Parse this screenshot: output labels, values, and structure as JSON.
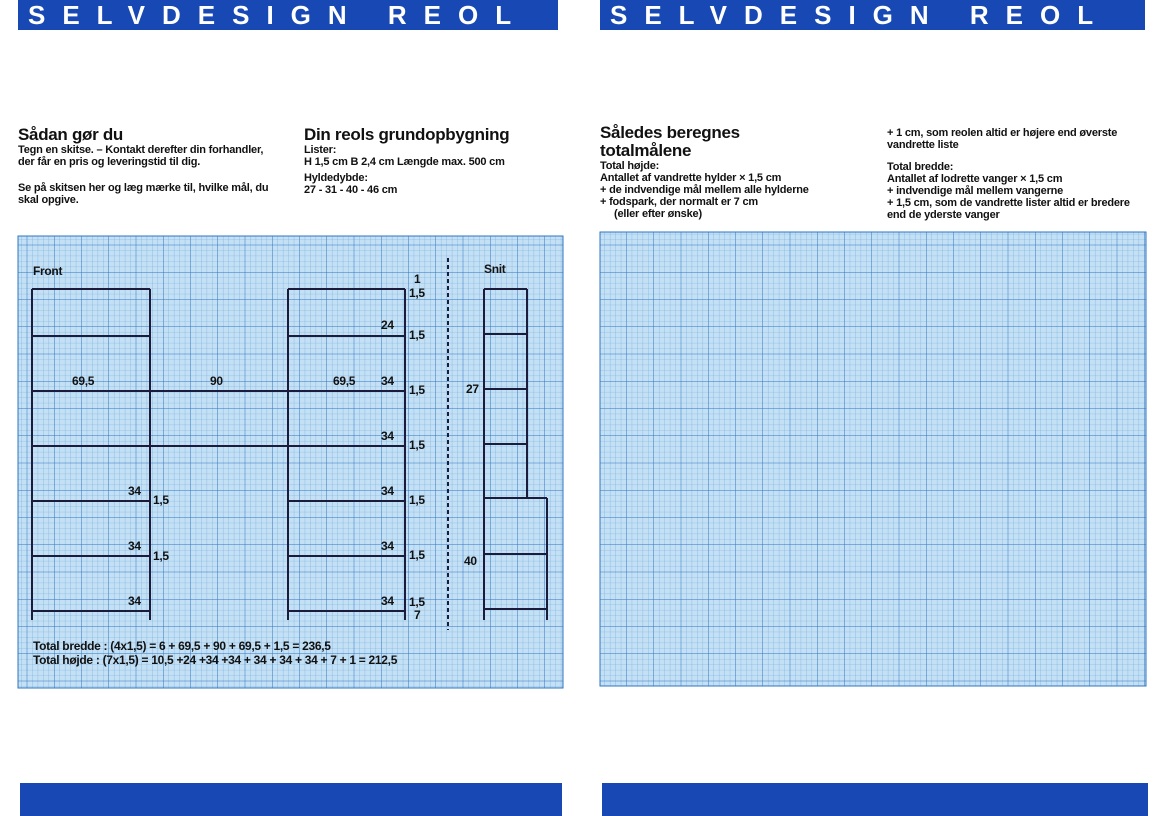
{
  "left_page": {
    "banner": "SELVDESIGN REOL",
    "how_to": {
      "title": "Sådan gør du",
      "paragraphs": [
        "Tegn en skitse. – Kontakt derefter din forhandler, der får en pris og leveringstid til dig.",
        "Se på skitsen her og læg mærke til, hvilke mål, du skal opgive."
      ]
    },
    "basics": {
      "title": "Din reols grundopbygning",
      "lines": [
        "Lister:",
        "H 1,5 cm  B 2,4 cm  Længde max. 500 cm",
        "Hyldedybde:",
        "27 - 31 - 40 - 46 cm"
      ]
    },
    "sketch": {
      "front_label": "Front",
      "section_label": "Snit",
      "dimensions": [
        "1",
        "1,5",
        "24",
        "1,5",
        "69,5",
        "90",
        "69,5",
        "34",
        "1,5",
        "27",
        "34",
        "1,5",
        "34",
        "1,5",
        "34",
        "1,5",
        "34",
        "1,5",
        "34",
        "1,5",
        "40",
        "34",
        "34",
        "1,5",
        "7"
      ],
      "totals": [
        "Total bredde : (4x1,5) = 6 + 69,5 + 90 + 69,5 + 1,5 = 236,5",
        "Total højde : (7x1,5) = 10,5 +24 +34 +34 + 34 + 34 + 34 + 7 + 1 = 212,5"
      ]
    }
  },
  "right_page": {
    "banner": "SELVDESIGN REOL",
    "calc": {
      "title": "Således beregnes totalmålene",
      "height_lines": [
        "Total højde:",
        "Antallet af vandrette hylder × 1,5 cm",
        "+ de indvendige mål mellem alle hylderne",
        "+ fodspark, der normalt er 7 cm",
        "(eller efter ønske)"
      ],
      "top_note": "+ 1 cm, som reolen altid er højere end øverste vandrette liste",
      "width_lines": [
        "Total bredde:",
        "Antallet af lodrette vanger × 1,5 cm",
        "+ indvendige mål mellem vangerne",
        "+ 1,5 cm, som de vandrette lister altid er bredere end de yderste vanger"
      ]
    }
  }
}
